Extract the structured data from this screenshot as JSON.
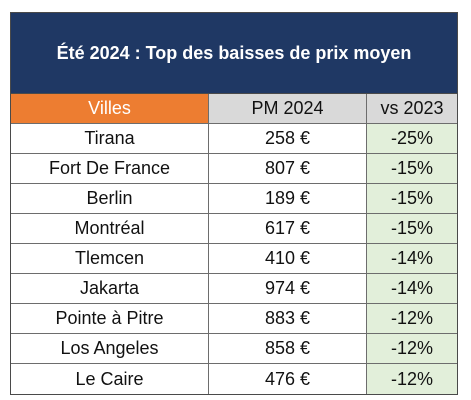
{
  "table": {
    "title": "Été 2024 : Top des baisses de prix moyen",
    "headers": [
      "Villes",
      "PM 2024",
      "vs 2023"
    ],
    "rows": [
      {
        "city": "Tirana",
        "price": "258 €",
        "change": "-25%"
      },
      {
        "city": "Fort De France",
        "price": "807 €",
        "change": "-15%"
      },
      {
        "city": "Berlin",
        "price": "189 €",
        "change": "-15%"
      },
      {
        "city": "Montréal",
        "price": "617 €",
        "change": "-15%"
      },
      {
        "city": "Tlemcen",
        "price": "410 €",
        "change": "-14%"
      },
      {
        "city": "Jakarta",
        "price": "974 €",
        "change": "-14%"
      },
      {
        "city": "Pointe à Pitre",
        "price": "883 €",
        "change": "-12%"
      },
      {
        "city": "Los Angeles",
        "price": "858 €",
        "change": "-12%"
      },
      {
        "city": "Le Caire",
        "price": "476 €",
        "change": "-12%"
      }
    ]
  },
  "colors": {
    "title_background": "#1f3864",
    "header_accent": "#ed7d31",
    "header_gray": "#d9d9d9",
    "change_background": "#e2efda"
  }
}
